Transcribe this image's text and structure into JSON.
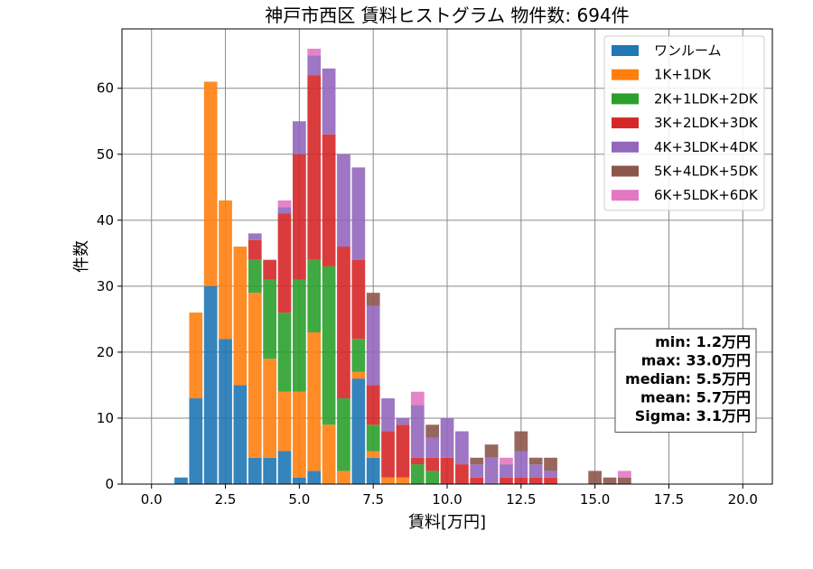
{
  "chart_data": {
    "type": "bar",
    "stacked": true,
    "title": "神戸市西区 賃料ヒストグラム 物件数: 694件",
    "xlabel": "賃料[万円]",
    "ylabel": "件数",
    "xlim": [
      -1.0,
      21.0
    ],
    "ylim": [
      0,
      69
    ],
    "xticks": [
      0.0,
      2.5,
      5.0,
      7.5,
      10.0,
      12.5,
      15.0,
      17.5,
      20.0
    ],
    "xtick_labels": [
      "0.0",
      "2.5",
      "5.0",
      "7.5",
      "10.0",
      "12.5",
      "15.0",
      "17.5",
      "20.0"
    ],
    "yticks": [
      0,
      10,
      20,
      30,
      40,
      50,
      60
    ],
    "ytick_labels": [
      "0",
      "10",
      "20",
      "30",
      "40",
      "50",
      "60"
    ],
    "grid": true,
    "legend_position": "top-right",
    "bin_width": 0.5,
    "x": [
      1.0,
      1.5,
      2.0,
      2.5,
      3.0,
      3.5,
      4.0,
      4.5,
      5.0,
      5.5,
      6.0,
      6.5,
      7.0,
      7.5,
      8.0,
      8.5,
      9.0,
      9.5,
      10.0,
      10.5,
      11.0,
      11.5,
      12.0,
      12.5,
      13.0,
      13.5,
      14.0,
      14.5,
      15.0,
      15.5,
      16.0,
      16.5
    ],
    "series": [
      {
        "name": "ワンルーム",
        "color": "#1f77b4",
        "values": [
          1,
          13,
          30,
          22,
          15,
          4,
          4,
          5,
          1,
          2,
          0,
          0,
          16,
          4,
          0,
          0,
          0,
          0,
          0,
          0,
          0,
          0,
          0,
          0,
          0,
          0,
          0,
          0,
          0,
          0,
          0,
          0
        ]
      },
      {
        "name": "1K+1DK",
        "color": "#ff7f0e",
        "values": [
          0,
          13,
          31,
          21,
          21,
          25,
          15,
          9,
          13,
          21,
          9,
          2,
          1,
          1,
          1,
          1,
          0,
          0,
          0,
          0,
          0,
          0,
          0,
          0,
          0,
          0,
          0,
          0,
          0,
          0,
          0,
          0
        ]
      },
      {
        "name": "2K+1LDK+2DK",
        "color": "#2ca02c",
        "values": [
          0,
          0,
          0,
          0,
          0,
          5,
          12,
          12,
          17,
          11,
          24,
          11,
          5,
          4,
          0,
          0,
          3,
          2,
          0,
          0,
          0,
          0,
          0,
          0,
          0,
          0,
          0,
          0,
          0,
          0,
          0,
          0
        ]
      },
      {
        "name": "3K+2LDK+3DK",
        "color": "#d62728",
        "values": [
          0,
          0,
          0,
          0,
          0,
          3,
          3,
          15,
          19,
          28,
          20,
          23,
          12,
          6,
          7,
          8,
          1,
          2,
          4,
          3,
          1,
          0,
          1,
          1,
          1,
          1,
          0,
          0,
          0,
          0,
          0,
          0
        ]
      },
      {
        "name": "4K+3LDK+4DK",
        "color": "#9467bd",
        "values": [
          0,
          0,
          0,
          0,
          0,
          1,
          0,
          1,
          5,
          3,
          10,
          14,
          14,
          12,
          5,
          1,
          8,
          3,
          6,
          5,
          2,
          4,
          2,
          4,
          2,
          1,
          0,
          0,
          0,
          0,
          0,
          0
        ]
      },
      {
        "name": "5K+4LDK+5DK",
        "color": "#8c564b",
        "values": [
          0,
          0,
          0,
          0,
          0,
          0,
          0,
          0,
          0,
          0,
          0,
          0,
          0,
          2,
          0,
          0,
          0,
          2,
          0,
          0,
          1,
          2,
          0,
          3,
          1,
          2,
          0,
          0,
          2,
          1,
          1,
          0
        ]
      },
      {
        "name": "6K+5LDK+6DK",
        "color": "#e377c2",
        "values": [
          0,
          0,
          0,
          0,
          0,
          0,
          0,
          1,
          0,
          1,
          0,
          0,
          0,
          0,
          0,
          0,
          2,
          0,
          0,
          0,
          0,
          0,
          1,
          0,
          0,
          0,
          0,
          0,
          0,
          0,
          1,
          0
        ]
      }
    ],
    "stats": [
      "min: 1.2万円",
      "max: 33.0万円",
      "median: 5.5万円",
      "mean: 5.7万円",
      "Sigma: 3.1万円"
    ]
  }
}
